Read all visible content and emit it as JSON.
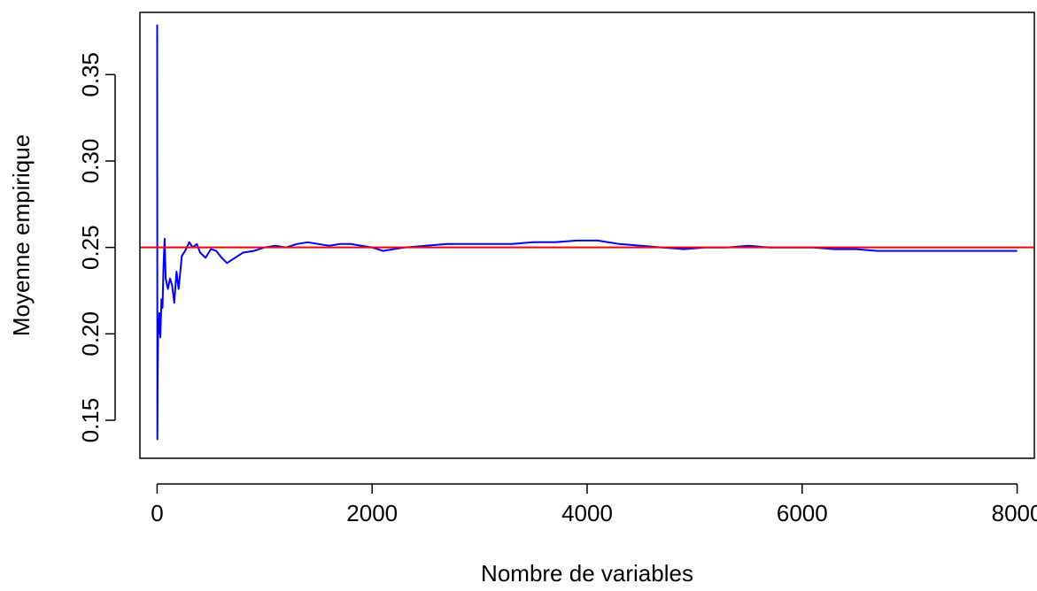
{
  "chart_data": {
    "type": "line",
    "title": "",
    "xlabel": "Nombre de variables",
    "ylabel": "Moyenne empirique",
    "xlim": [
      -160,
      8160
    ],
    "ylim": [
      0.128,
      0.386
    ],
    "x_ticks": [
      0,
      2000,
      4000,
      6000,
      8000
    ],
    "x_tick_labels": [
      "0",
      "2000",
      "4000",
      "6000",
      "8000"
    ],
    "y_ticks": [
      0.15,
      0.2,
      0.25,
      0.3,
      0.35
    ],
    "y_tick_labels": [
      "0.15",
      "0.20",
      "0.25",
      "0.30",
      "0.35"
    ],
    "grid": false,
    "reference_line": {
      "y": 0.25,
      "color": "#ff0000"
    },
    "series": [
      {
        "color": "#0000ff",
        "x": [
          1,
          2,
          5,
          10,
          15,
          20,
          30,
          40,
          50,
          60,
          70,
          80,
          100,
          120,
          140,
          160,
          180,
          200,
          230,
          260,
          300,
          330,
          370,
          400,
          450,
          500,
          550,
          600,
          650,
          700,
          750,
          800,
          900,
          1000,
          1100,
          1200,
          1300,
          1400,
          1500,
          1600,
          1700,
          1800,
          1900,
          2000,
          2100,
          2200,
          2300,
          2500,
          2700,
          2900,
          3100,
          3300,
          3500,
          3700,
          3900,
          4100,
          4300,
          4500,
          4700,
          4900,
          5100,
          5300,
          5500,
          5700,
          5900,
          6100,
          6300,
          6500,
          6700,
          6900,
          7100,
          7300,
          7500,
          7700,
          7900,
          8000
        ],
        "values": [
          0.379,
          0.139,
          0.175,
          0.205,
          0.2,
          0.212,
          0.198,
          0.22,
          0.215,
          0.24,
          0.255,
          0.232,
          0.226,
          0.232,
          0.228,
          0.218,
          0.236,
          0.226,
          0.245,
          0.248,
          0.253,
          0.25,
          0.252,
          0.247,
          0.244,
          0.249,
          0.248,
          0.244,
          0.241,
          0.243,
          0.245,
          0.247,
          0.248,
          0.25,
          0.251,
          0.25,
          0.252,
          0.253,
          0.252,
          0.251,
          0.252,
          0.252,
          0.251,
          0.25,
          0.248,
          0.249,
          0.25,
          0.251,
          0.252,
          0.252,
          0.252,
          0.252,
          0.253,
          0.253,
          0.254,
          0.254,
          0.252,
          0.251,
          0.25,
          0.249,
          0.25,
          0.25,
          0.251,
          0.25,
          0.25,
          0.25,
          0.249,
          0.249,
          0.248,
          0.248,
          0.248,
          0.248,
          0.248,
          0.248,
          0.248,
          0.248
        ]
      }
    ]
  }
}
